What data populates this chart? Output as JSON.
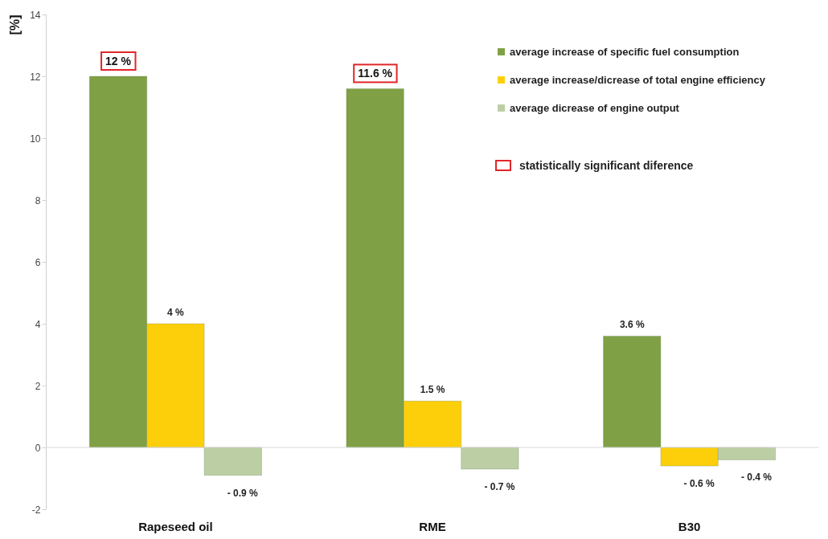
{
  "chart_data": {
    "type": "bar",
    "ylabel": "[%]",
    "categories": [
      "Rapeseed oil",
      "RME",
      "B30"
    ],
    "series": [
      {
        "name": "average increase of specific fuel consumption",
        "color": "#7fa044",
        "values": [
          12,
          11.6,
          3.6
        ],
        "value_labels": [
          null,
          null,
          "3.6 %"
        ]
      },
      {
        "name": "average increase/dicrease of total engine efficiency",
        "color": "#fccf0a",
        "values": [
          4,
          1.5,
          -0.6
        ],
        "value_labels": [
          "4 %",
          "1.5 %",
          "- 0.6 %"
        ]
      },
      {
        "name": "average dicrease of engine output",
        "color": "#bccfa4",
        "values": [
          -0.9,
          -0.7,
          -0.4
        ],
        "value_labels": [
          "- 0.9 %",
          "- 0.7 %",
          "- 0.4 %"
        ]
      }
    ],
    "ylim": [
      -2,
      14
    ],
    "yticks": [
      -2,
      0,
      2,
      4,
      6,
      8,
      10,
      12,
      14
    ],
    "grid": false,
    "legend": "top right",
    "ref_lines": [
      {
        "axis": "y",
        "value": 0,
        "color": "#d9d9d9"
      }
    ],
    "annotations": [
      "12 %",
      "11.6 %",
      "statistically significant diference"
    ]
  }
}
